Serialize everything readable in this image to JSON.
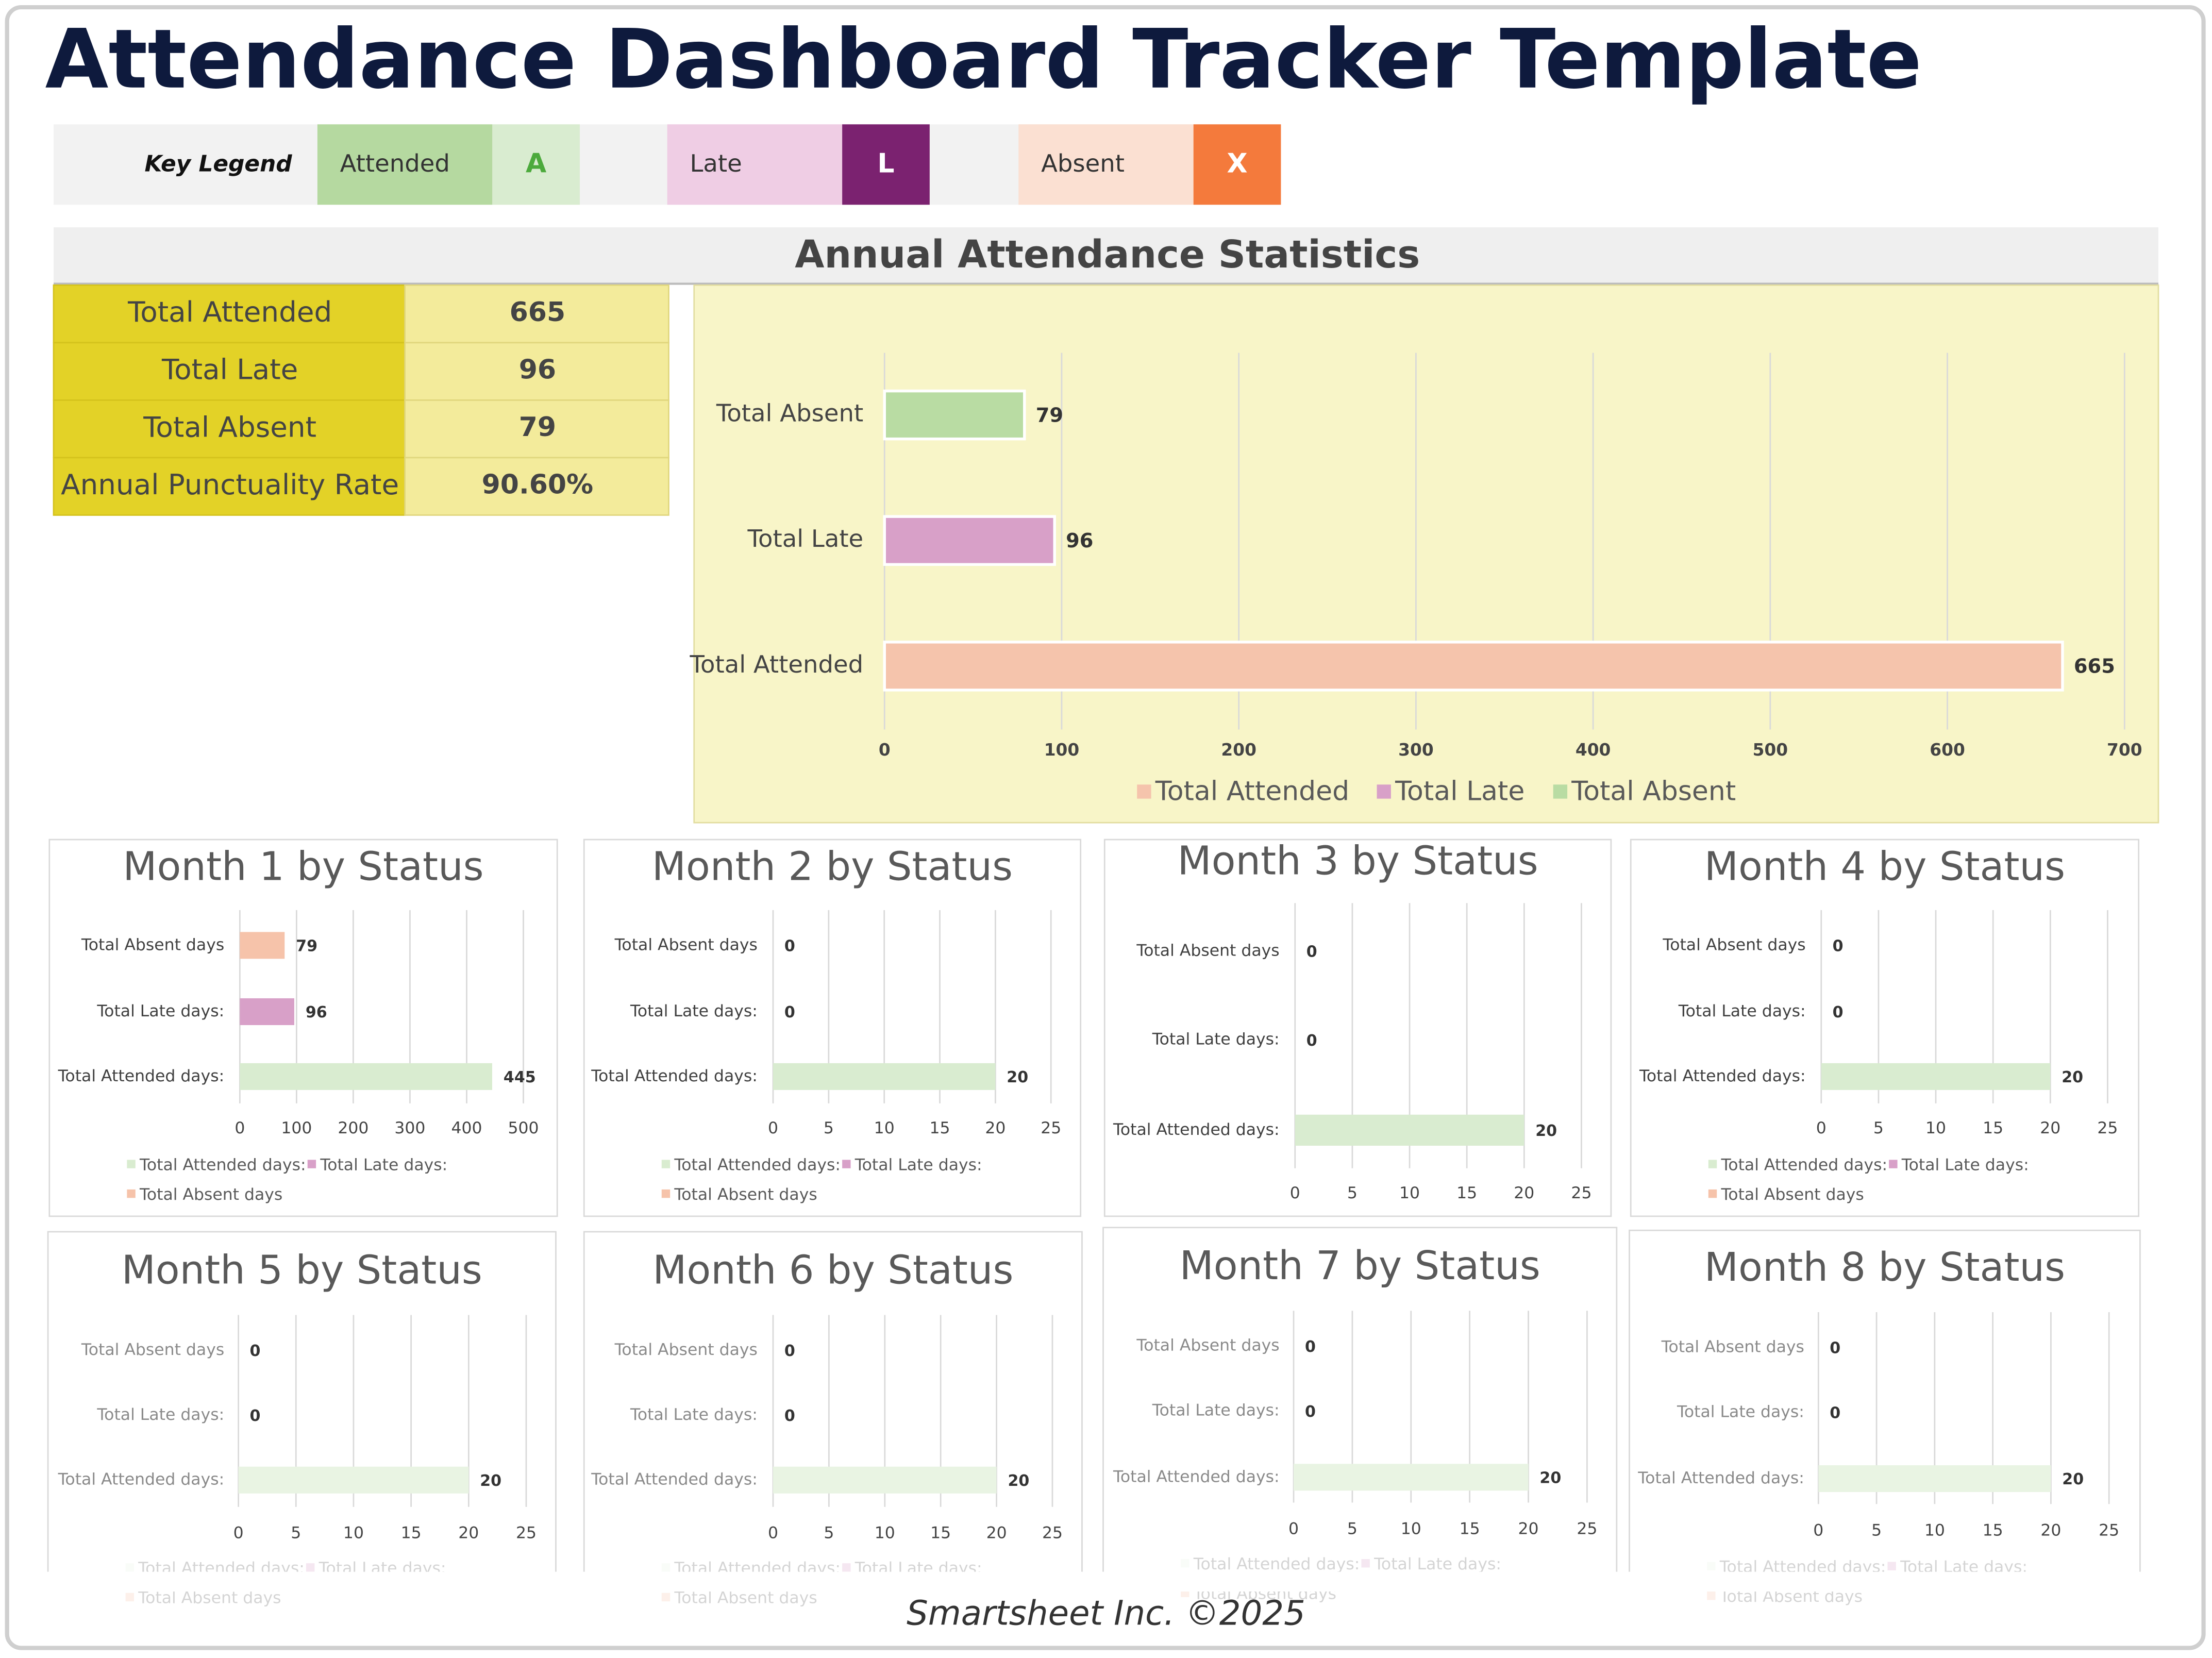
{
  "title": "Attendance Dashboard Tracker Template",
  "key_legend": {
    "label": "Key Legend",
    "items": [
      {
        "name": "Attended",
        "code": "A"
      },
      {
        "name": "Late",
        "code": "L"
      },
      {
        "name": "Absent",
        "code": "X"
      }
    ]
  },
  "statistics": {
    "title": "Annual Attendance Statistics",
    "rows": [
      [
        "Total Attended",
        "665"
      ],
      [
        "Total Late",
        "96"
      ],
      [
        "Total Absent",
        "79"
      ],
      [
        "Annual Punctuality Rate",
        "90.60%"
      ]
    ]
  },
  "chart_data": [
    {
      "type": "barh",
      "categories": [
        "Total Absent",
        "Total Late",
        "Total Attended"
      ],
      "values": [
        79,
        96,
        665
      ],
      "colors": [
        "#b9dca3",
        "#d8a0c8",
        "#f5c4ac"
      ],
      "xlim": [
        0,
        700
      ],
      "xticks": [
        0,
        100,
        200,
        300,
        400,
        500,
        600,
        700
      ],
      "grid": true,
      "legend": true
    },
    {
      "type": "barh",
      "title": "Month 1 by Status",
      "categories": [
        "Total Absent days",
        "Total Late days:",
        "Total Attended days:"
      ],
      "values": [
        79,
        96,
        445
      ],
      "colors": [
        "#f6c3aa",
        "#d8a0c8",
        "#d9ecd0"
      ],
      "xlim": [
        0,
        500
      ],
      "xticks": [
        0,
        100,
        200,
        300,
        400,
        500
      ],
      "grid": true,
      "legend": true
    },
    {
      "type": "barh",
      "title": "Month 2 by Status",
      "categories": [
        "Total Absent days",
        "Total Late days:",
        "Total Attended days:"
      ],
      "values": [
        0,
        0,
        20
      ],
      "colors": [
        "#f6c3aa",
        "#d8a0c8",
        "#d9ecd0"
      ],
      "xlim": [
        0,
        25
      ],
      "xticks": [
        0,
        5,
        10,
        15,
        20,
        25
      ],
      "grid": true,
      "legend": true
    },
    {
      "type": "barh",
      "title": "Month 3 by Status",
      "categories": [
        "Total Absent days",
        "Total Late days:",
        "Total Attended days:"
      ],
      "values": [
        0,
        0,
        20
      ],
      "colors": [
        "#f6c3aa",
        "#d8a0c8",
        "#d9ecd0"
      ],
      "xlim": [
        0,
        25
      ],
      "xticks": [
        0,
        5,
        10,
        15,
        20,
        25
      ],
      "grid": true,
      "legend": false
    },
    {
      "type": "barh",
      "title": "Month 4 by Status",
      "categories": [
        "Total Absent days",
        "Total Late days:",
        "Total Attended days:"
      ],
      "values": [
        0,
        0,
        20
      ],
      "colors": [
        "#f6c3aa",
        "#d8a0c8",
        "#d9ecd0"
      ],
      "xlim": [
        0,
        25
      ],
      "xticks": [
        0,
        5,
        10,
        15,
        20,
        25
      ],
      "grid": true,
      "legend": true
    },
    {
      "type": "barh",
      "title": "Month 5 by Status",
      "categories": [
        "Total Absent days",
        "Total Late days:",
        "Total Attended days:"
      ],
      "values": [
        0,
        0,
        20
      ],
      "colors": [
        "#f6c3aa",
        "#d8a0c8",
        "#e9f4e3"
      ],
      "xlim": [
        0,
        25
      ],
      "xticks": [
        0,
        5,
        10,
        15,
        20,
        25
      ],
      "grid": true,
      "legend": true
    },
    {
      "type": "barh",
      "title": "Month 6 by Status",
      "categories": [
        "Total Absent days",
        "Total Late days:",
        "Total Attended days:"
      ],
      "values": [
        0,
        0,
        20
      ],
      "colors": [
        "#f6c3aa",
        "#d8a0c8",
        "#e9f4e3"
      ],
      "xlim": [
        0,
        25
      ],
      "xticks": [
        0,
        5,
        10,
        15,
        20,
        25
      ],
      "grid": true,
      "legend": true
    },
    {
      "type": "barh",
      "title": "Month 7 by Status",
      "categories": [
        "Total Absent days",
        "Total Late days:",
        "Total Attended days:"
      ],
      "values": [
        0,
        0,
        20
      ],
      "colors": [
        "#f6c3aa",
        "#d8a0c8",
        "#e9f4e3"
      ],
      "xlim": [
        0,
        25
      ],
      "xticks": [
        0,
        5,
        10,
        15,
        20,
        25
      ],
      "grid": true,
      "legend": true
    },
    {
      "type": "barh",
      "title": "Month 8 by Status",
      "categories": [
        "Total Absent days",
        "Total Late days:",
        "Total Attended days:"
      ],
      "values": [
        0,
        0,
        20
      ],
      "colors": [
        "#f6c3aa",
        "#d8a0c8",
        "#e9f4e3"
      ],
      "xlim": [
        0,
        25
      ],
      "xticks": [
        0,
        5,
        10,
        15,
        20,
        25
      ],
      "grid": true,
      "legend": true
    }
  ],
  "footer": "Smartsheet Inc. ©2025"
}
